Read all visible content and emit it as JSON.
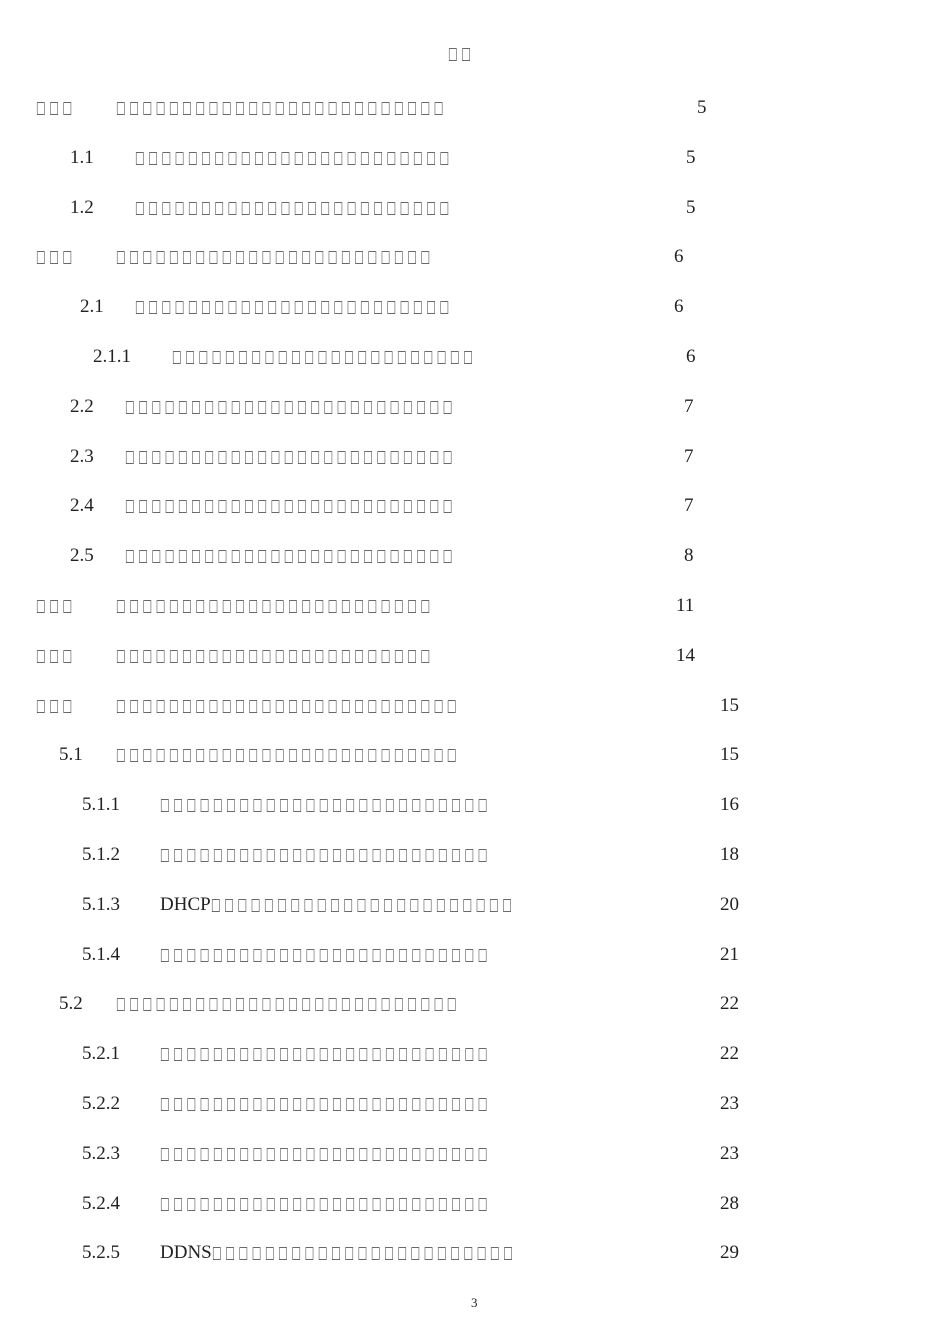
{
  "heading": "□□",
  "entries": [
    {
      "num": "□□□",
      "prefix": "",
      "title": "□□□□□□□□□□□□□□□□□□□□□□□□□",
      "page": "5"
    },
    {
      "num": "1.1",
      "prefix": "",
      "title": "□□□□□□□□□□□□□□□□□□□□□□□□",
      "page": "5"
    },
    {
      "num": "1.2",
      "prefix": "",
      "title": "□□□□□□□□□□□□□□□□□□□□□□□□",
      "page": "5"
    },
    {
      "num": "□□□",
      "prefix": "",
      "title": "□□□□□□□□□□□□□□□□□□□□□□□□",
      "page": "6"
    },
    {
      "num": "2.1",
      "prefix": "",
      "title": "□□□□□□□□□□□□□□□□□□□□□□□□",
      "page": "6"
    },
    {
      "num": "2.1.1",
      "prefix": "",
      "title": "□□□□□□□□□□□□□□□□□□□□□□□",
      "page": "6"
    },
    {
      "num": "2.2",
      "prefix": "",
      "title": "□□□□□□□□□□□□□□□□□□□□□□□□□",
      "page": "7"
    },
    {
      "num": "2.3",
      "prefix": "",
      "title": "□□□□□□□□□□□□□□□□□□□□□□□□□",
      "page": "7"
    },
    {
      "num": "2.4",
      "prefix": "",
      "title": "□□□□□□□□□□□□□□□□□□□□□□□□□",
      "page": "7"
    },
    {
      "num": "2.5",
      "prefix": "",
      "title": "□□□□□□□□□□□□□□□□□□□□□□□□□",
      "page": "8"
    },
    {
      "num": "□□□",
      "prefix": "",
      "title": "□□□□□□□□□□□□□□□□□□□□□□□□",
      "page": "11"
    },
    {
      "num": "□□□",
      "prefix": "",
      "title": "□□□□□□□□□□□□□□□□□□□□□□□□",
      "page": "14"
    },
    {
      "num": "□□□",
      "prefix": "",
      "title": "□□□□□□□□□□□□□□□□□□□□□□□□□□",
      "page": "15"
    },
    {
      "num": "5.1",
      "prefix": "",
      "title": "□□□□□□□□□□□□□□□□□□□□□□□□□□",
      "page": "15"
    },
    {
      "num": "5.1.1",
      "prefix": "",
      "title": "□□□□□□□□□□□□□□□□□□□□□□□□□",
      "page": "16"
    },
    {
      "num": "5.1.2",
      "prefix": "",
      "title": "□□□□□□□□□□□□□□□□□□□□□□□□□",
      "page": "18"
    },
    {
      "num": "5.1.3",
      "prefix": "DHCP",
      "title": "□□□□□□□□□□□□□□□□□□□□□□□",
      "page": "20"
    },
    {
      "num": "5.1.4",
      "prefix": "",
      "title": "□□□□□□□□□□□□□□□□□□□□□□□□□",
      "page": "21"
    },
    {
      "num": "5.2",
      "prefix": "",
      "title": "□□□□□□□□□□□□□□□□□□□□□□□□□□",
      "page": "22"
    },
    {
      "num": "5.2.1",
      "prefix": "",
      "title": "□□□□□□□□□□□□□□□□□□□□□□□□□",
      "page": "22"
    },
    {
      "num": "5.2.2",
      "prefix": "",
      "title": "□□□□□□□□□□□□□□□□□□□□□□□□□",
      "page": "23"
    },
    {
      "num": "5.2.3",
      "prefix": "",
      "title": "□□□□□□□□□□□□□□□□□□□□□□□□□",
      "page": "23"
    },
    {
      "num": "5.2.4",
      "prefix": "",
      "title": "□□□□□□□□□□□□□□□□□□□□□□□□□",
      "page": "28"
    },
    {
      "num": "5.2.5",
      "prefix": "DDNS",
      "title": "□□□□□□□□□□□□□□□□□□□□□□□",
      "page": "29"
    }
  ],
  "footer_page": "3"
}
